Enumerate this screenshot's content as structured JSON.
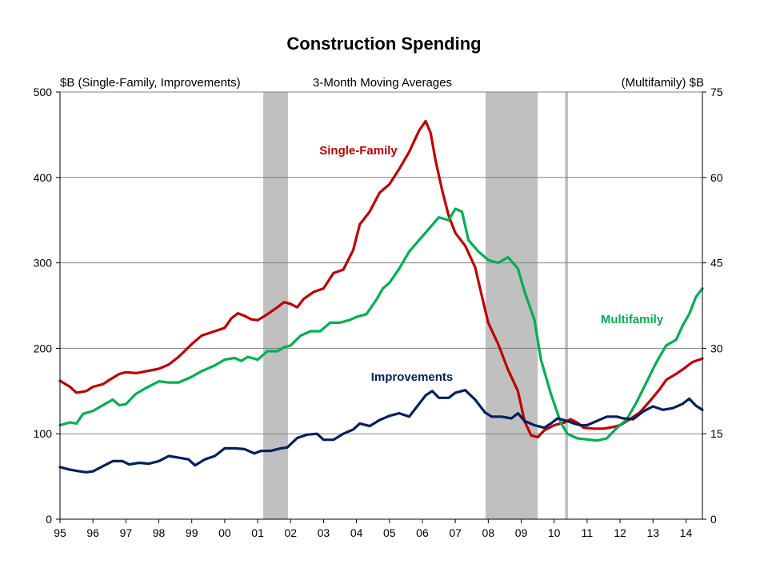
{
  "chart_data": {
    "type": "line",
    "title": "Construction Spending",
    "subtitle": "3-Month Moving Averages",
    "y_left_label": "$B (Single-Family, Improvements)",
    "y_right_label": "(Multifamily)  $B",
    "xlim": [
      1995,
      2014.5
    ],
    "ylim_left": [
      0,
      500
    ],
    "ylim_right": [
      0,
      75
    ],
    "y_left_ticks": [
      "0",
      "100",
      "200",
      "300",
      "400",
      "500"
    ],
    "y_right_ticks": [
      "0",
      "15",
      "30",
      "45",
      "60",
      "75"
    ],
    "x_tick_labels": [
      "95",
      "96",
      "97",
      "98",
      "99",
      "00",
      "01",
      "02",
      "03",
      "04",
      "05",
      "06",
      "07",
      "08",
      "09",
      "10",
      "11",
      "12",
      "13",
      "14"
    ],
    "x_tick_years": [
      1995,
      1996,
      1997,
      1998,
      1999,
      2000,
      2001,
      2002,
      2003,
      2004,
      2005,
      2006,
      2007,
      2008,
      2009,
      2010,
      2011,
      2012,
      2013,
      2014
    ],
    "gridlines": "horizontal",
    "recessions": [
      {
        "start": 2001.17,
        "end": 2001.92
      },
      {
        "start": 2007.92,
        "end": 2009.5
      },
      {
        "start": 2010.33,
        "end": 2010.42
      }
    ],
    "series": [
      {
        "name": "Single-Family",
        "axis": "left",
        "color": "#c00000",
        "points": [
          [
            1995.0,
            162
          ],
          [
            1995.3,
            155
          ],
          [
            1995.5,
            148
          ],
          [
            1995.8,
            150
          ],
          [
            1996.0,
            155
          ],
          [
            1996.3,
            158
          ],
          [
            1996.5,
            163
          ],
          [
            1996.8,
            170
          ],
          [
            1997.0,
            172
          ],
          [
            1997.3,
            171
          ],
          [
            1997.6,
            173
          ],
          [
            1998.0,
            176
          ],
          [
            1998.3,
            181
          ],
          [
            1998.6,
            190
          ],
          [
            1999.0,
            205
          ],
          [
            1999.3,
            215
          ],
          [
            1999.7,
            220
          ],
          [
            2000.0,
            224
          ],
          [
            2000.2,
            235
          ],
          [
            2000.4,
            241
          ],
          [
            2000.6,
            238
          ],
          [
            2000.8,
            234
          ],
          [
            2001.0,
            233
          ],
          [
            2001.3,
            240
          ],
          [
            2001.6,
            248
          ],
          [
            2001.8,
            254
          ],
          [
            2002.0,
            252
          ],
          [
            2002.2,
            248
          ],
          [
            2002.4,
            258
          ],
          [
            2002.7,
            266
          ],
          [
            2003.0,
            270
          ],
          [
            2003.3,
            288
          ],
          [
            2003.6,
            292
          ],
          [
            2003.9,
            315
          ],
          [
            2004.1,
            345
          ],
          [
            2004.4,
            360
          ],
          [
            2004.7,
            382
          ],
          [
            2005.0,
            392
          ],
          [
            2005.3,
            410
          ],
          [
            2005.6,
            430
          ],
          [
            2005.9,
            455
          ],
          [
            2006.1,
            466
          ],
          [
            2006.25,
            452
          ],
          [
            2006.4,
            420
          ],
          [
            2006.6,
            385
          ],
          [
            2006.8,
            355
          ],
          [
            2007.0,
            335
          ],
          [
            2007.3,
            320
          ],
          [
            2007.6,
            295
          ],
          [
            2007.8,
            262
          ],
          [
            2008.0,
            230
          ],
          [
            2008.3,
            205
          ],
          [
            2008.6,
            175
          ],
          [
            2008.9,
            150
          ],
          [
            2009.1,
            115
          ],
          [
            2009.3,
            98
          ],
          [
            2009.5,
            96
          ],
          [
            2009.7,
            104
          ],
          [
            2010.0,
            110
          ],
          [
            2010.3,
            113
          ],
          [
            2010.5,
            117
          ],
          [
            2010.7,
            113
          ],
          [
            2010.9,
            107
          ],
          [
            2011.2,
            106
          ],
          [
            2011.5,
            106
          ],
          [
            2011.8,
            108
          ],
          [
            2012.0,
            110
          ],
          [
            2012.3,
            117
          ],
          [
            2012.6,
            125
          ],
          [
            2012.9,
            138
          ],
          [
            2013.2,
            152
          ],
          [
            2013.4,
            163
          ],
          [
            2013.7,
            170
          ],
          [
            2014.0,
            178
          ],
          [
            2014.2,
            184
          ],
          [
            2014.5,
            188
          ]
        ]
      },
      {
        "name": "Multifamily",
        "axis": "right",
        "color": "#00b050",
        "points": [
          [
            1995.0,
            16.5
          ],
          [
            1995.3,
            17.0
          ],
          [
            1995.5,
            16.8
          ],
          [
            1995.7,
            18.5
          ],
          [
            1996.0,
            19.0
          ],
          [
            1996.3,
            20.0
          ],
          [
            1996.6,
            21.0
          ],
          [
            1996.8,
            20.0
          ],
          [
            1997.0,
            20.2
          ],
          [
            1997.3,
            22.0
          ],
          [
            1997.6,
            23.0
          ],
          [
            1998.0,
            24.2
          ],
          [
            1998.3,
            24.0
          ],
          [
            1998.6,
            24.0
          ],
          [
            1999.0,
            25.0
          ],
          [
            1999.3,
            26.0
          ],
          [
            1999.7,
            27.0
          ],
          [
            2000.0,
            28.0
          ],
          [
            2000.3,
            28.3
          ],
          [
            2000.5,
            27.8
          ],
          [
            2000.7,
            28.5
          ],
          [
            2001.0,
            28.0
          ],
          [
            2001.3,
            29.5
          ],
          [
            2001.6,
            29.5
          ],
          [
            2001.8,
            30.2
          ],
          [
            2002.0,
            30.5
          ],
          [
            2002.3,
            32.2
          ],
          [
            2002.6,
            33.0
          ],
          [
            2002.9,
            33.0
          ],
          [
            2003.2,
            34.5
          ],
          [
            2003.5,
            34.5
          ],
          [
            2003.8,
            35.0
          ],
          [
            2004.0,
            35.5
          ],
          [
            2004.3,
            36.0
          ],
          [
            2004.6,
            38.5
          ],
          [
            2004.8,
            40.5
          ],
          [
            2005.0,
            41.5
          ],
          [
            2005.3,
            44.0
          ],
          [
            2005.6,
            47.0
          ],
          [
            2005.9,
            49.0
          ],
          [
            2006.2,
            51.0
          ],
          [
            2006.5,
            53.0
          ],
          [
            2006.8,
            52.5
          ],
          [
            2007.0,
            54.5
          ],
          [
            2007.2,
            54.0
          ],
          [
            2007.4,
            49.0
          ],
          [
            2007.7,
            47.0
          ],
          [
            2008.0,
            45.5
          ],
          [
            2008.3,
            45.0
          ],
          [
            2008.6,
            46.0
          ],
          [
            2008.9,
            44.0
          ],
          [
            2009.1,
            40.0
          ],
          [
            2009.4,
            35.0
          ],
          [
            2009.6,
            28.0
          ],
          [
            2009.9,
            22.0
          ],
          [
            2010.2,
            17.0
          ],
          [
            2010.4,
            15.0
          ],
          [
            2010.7,
            14.2
          ],
          [
            2011.0,
            14.0
          ],
          [
            2011.3,
            13.8
          ],
          [
            2011.6,
            14.2
          ],
          [
            2011.9,
            16.0
          ],
          [
            2012.2,
            17.5
          ],
          [
            2012.5,
            20.5
          ],
          [
            2012.8,
            24.0
          ],
          [
            2013.1,
            27.5
          ],
          [
            2013.4,
            30.5
          ],
          [
            2013.7,
            31.5
          ],
          [
            2013.9,
            34.0
          ],
          [
            2014.1,
            36.0
          ],
          [
            2014.3,
            39.0
          ],
          [
            2014.5,
            40.5
          ]
        ]
      },
      {
        "name": "Improvements",
        "axis": "left",
        "color": "#002060",
        "points": [
          [
            1995.0,
            61
          ],
          [
            1995.3,
            58
          ],
          [
            1995.6,
            56
          ],
          [
            1995.8,
            55
          ],
          [
            1996.0,
            56
          ],
          [
            1996.3,
            62
          ],
          [
            1996.6,
            68
          ],
          [
            1996.9,
            68
          ],
          [
            1997.1,
            64
          ],
          [
            1997.4,
            66
          ],
          [
            1997.7,
            65
          ],
          [
            1998.0,
            68
          ],
          [
            1998.3,
            74
          ],
          [
            1998.6,
            72
          ],
          [
            1998.9,
            70
          ],
          [
            1999.1,
            63
          ],
          [
            1999.4,
            70
          ],
          [
            1999.7,
            74
          ],
          [
            2000.0,
            83
          ],
          [
            2000.3,
            83
          ],
          [
            2000.6,
            82
          ],
          [
            2000.9,
            77
          ],
          [
            2001.1,
            80
          ],
          [
            2001.4,
            80
          ],
          [
            2001.7,
            83
          ],
          [
            2001.9,
            84
          ],
          [
            2002.2,
            95
          ],
          [
            2002.5,
            99
          ],
          [
            2002.8,
            100
          ],
          [
            2003.0,
            93
          ],
          [
            2003.3,
            93
          ],
          [
            2003.6,
            100
          ],
          [
            2003.9,
            105
          ],
          [
            2004.1,
            112
          ],
          [
            2004.4,
            109
          ],
          [
            2004.7,
            116
          ],
          [
            2005.0,
            121
          ],
          [
            2005.3,
            124
          ],
          [
            2005.6,
            120
          ],
          [
            2005.9,
            135
          ],
          [
            2006.1,
            145
          ],
          [
            2006.3,
            150
          ],
          [
            2006.5,
            142
          ],
          [
            2006.8,
            142
          ],
          [
            2007.0,
            148
          ],
          [
            2007.3,
            151
          ],
          [
            2007.6,
            140
          ],
          [
            2007.9,
            125
          ],
          [
            2008.1,
            120
          ],
          [
            2008.4,
            120
          ],
          [
            2008.7,
            118
          ],
          [
            2008.9,
            124
          ],
          [
            2009.1,
            115
          ],
          [
            2009.4,
            110
          ],
          [
            2009.7,
            107
          ],
          [
            2009.9,
            112
          ],
          [
            2010.1,
            118
          ],
          [
            2010.4,
            115
          ],
          [
            2010.6,
            112
          ],
          [
            2010.8,
            110
          ],
          [
            2011.0,
            110
          ],
          [
            2011.3,
            115
          ],
          [
            2011.6,
            120
          ],
          [
            2011.9,
            120
          ],
          [
            2012.1,
            118
          ],
          [
            2012.4,
            117
          ],
          [
            2012.7,
            126
          ],
          [
            2013.0,
            132
          ],
          [
            2013.3,
            128
          ],
          [
            2013.6,
            130
          ],
          [
            2013.9,
            135
          ],
          [
            2014.1,
            141
          ],
          [
            2014.3,
            133
          ],
          [
            2014.5,
            128
          ]
        ]
      }
    ],
    "series_labels": [
      {
        "text": "Single-Family",
        "color": "#c00000"
      },
      {
        "text": "Multifamily",
        "color": "#00b050"
      },
      {
        "text": "Improvements",
        "color": "#002060"
      }
    ]
  }
}
